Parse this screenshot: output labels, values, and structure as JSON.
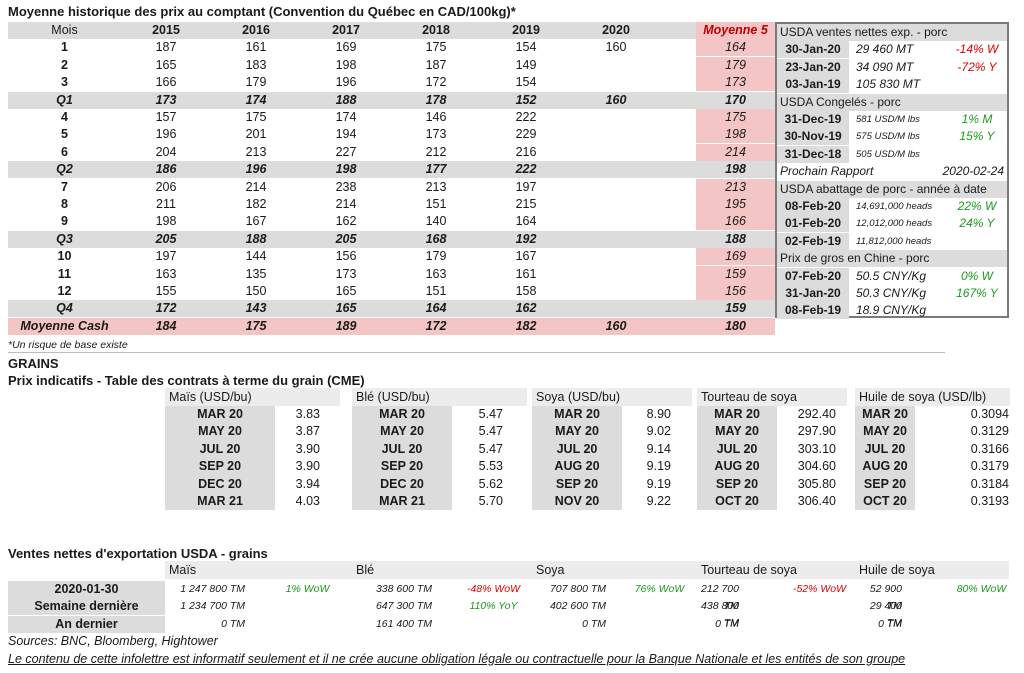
{
  "main": {
    "title": "Moyenne historique des prix au comptant (Convention du Québec en CAD/100kg)*",
    "headers": [
      "Mois",
      "2015",
      "2016",
      "2017",
      "2018",
      "2019",
      "2020",
      "Moyenne 5"
    ],
    "rows": [
      {
        "label": "1",
        "values": [
          "187",
          "161",
          "169",
          "175",
          "154",
          "160"
        ],
        "avg": "164",
        "type": "month"
      },
      {
        "label": "2",
        "values": [
          "165",
          "183",
          "198",
          "187",
          "149",
          ""
        ],
        "avg": "179",
        "type": "month"
      },
      {
        "label": "3",
        "values": [
          "166",
          "179",
          "196",
          "172",
          "154",
          ""
        ],
        "avg": "173",
        "type": "month"
      },
      {
        "label": "Q1",
        "values": [
          "173",
          "174",
          "188",
          "178",
          "152",
          "160"
        ],
        "avg": "170",
        "type": "quarter"
      },
      {
        "label": "4",
        "values": [
          "157",
          "175",
          "174",
          "146",
          "222",
          ""
        ],
        "avg": "175",
        "type": "month"
      },
      {
        "label": "5",
        "values": [
          "196",
          "201",
          "194",
          "173",
          "229",
          ""
        ],
        "avg": "198",
        "type": "month"
      },
      {
        "label": "6",
        "values": [
          "204",
          "213",
          "227",
          "212",
          "216",
          ""
        ],
        "avg": "214",
        "type": "month"
      },
      {
        "label": "Q2",
        "values": [
          "186",
          "196",
          "198",
          "177",
          "222",
          ""
        ],
        "avg": "198",
        "type": "quarter"
      },
      {
        "label": "7",
        "values": [
          "206",
          "214",
          "238",
          "213",
          "197",
          ""
        ],
        "avg": "213",
        "type": "month"
      },
      {
        "label": "8",
        "values": [
          "211",
          "182",
          "214",
          "151",
          "215",
          ""
        ],
        "avg": "195",
        "type": "month"
      },
      {
        "label": "9",
        "values": [
          "198",
          "167",
          "162",
          "140",
          "164",
          ""
        ],
        "avg": "166",
        "type": "month"
      },
      {
        "label": "Q3",
        "values": [
          "205",
          "188",
          "205",
          "168",
          "192",
          ""
        ],
        "avg": "188",
        "type": "quarter"
      },
      {
        "label": "10",
        "values": [
          "197",
          "144",
          "156",
          "179",
          "167",
          ""
        ],
        "avg": "169",
        "type": "month"
      },
      {
        "label": "11",
        "values": [
          "163",
          "135",
          "173",
          "163",
          "161",
          ""
        ],
        "avg": "159",
        "type": "month"
      },
      {
        "label": "12",
        "values": [
          "155",
          "150",
          "165",
          "151",
          "158",
          ""
        ],
        "avg": "156",
        "type": "month"
      },
      {
        "label": "Q4",
        "values": [
          "172",
          "143",
          "165",
          "164",
          "162",
          ""
        ],
        "avg": "159",
        "type": "quarter"
      },
      {
        "label": "Moyenne Cash",
        "values": [
          "184",
          "175",
          "189",
          "172",
          "182",
          "160"
        ],
        "avg": "180",
        "type": "total"
      }
    ],
    "footnote": "*Un risque de base existe"
  },
  "panel": {
    "sections": [
      {
        "title": "USDA ventes nettes exp. - porc",
        "rows": [
          {
            "date": "30-Jan-20",
            "value": "29 460  MT",
            "change": "-14% W",
            "color": "red",
            "small": false
          },
          {
            "date": "23-Jan-20",
            "value": "34 090  MT",
            "change": "-72% Y",
            "color": "red",
            "small": false
          },
          {
            "date": "03-Jan-19",
            "value": "105 830  MT",
            "change": "",
            "color": "",
            "small": false
          }
        ]
      },
      {
        "title": "USDA Congelés - porc",
        "rows": [
          {
            "date": "31-Dec-19",
            "value": "581 USD/M lbs",
            "change": "1% M",
            "color": "green",
            "small": true
          },
          {
            "date": "30-Nov-19",
            "value": "575 USD/M lbs",
            "change": "15% Y",
            "color": "green",
            "small": true
          },
          {
            "date": "31-Dec-18",
            "value": "505 USD/M lbs",
            "change": "",
            "color": "",
            "small": true
          }
        ]
      },
      {
        "title": "",
        "rows": []
      },
      {
        "title": "USDA abattage de porc - année à date",
        "rows": [
          {
            "date": "08-Feb-20",
            "value": "14,691,000 heads",
            "change": "22% W",
            "color": "green",
            "small": true
          },
          {
            "date": "01-Feb-20",
            "value": "12,012,000 heads",
            "change": "24% Y",
            "color": "green",
            "small": true
          },
          {
            "date": "02-Feb-19",
            "value": "11,812,000 heads",
            "change": "",
            "color": "",
            "small": true
          }
        ]
      },
      {
        "title": "Prix de gros en Chine - porc",
        "rows": [
          {
            "date": "07-Feb-20",
            "value": "50.5 CNY/Kg",
            "change": "0% W",
            "color": "green",
            "small": false
          },
          {
            "date": "31-Jan-20",
            "value": "50.3 CNY/Kg",
            "change": "167% Y",
            "color": "green",
            "small": false
          },
          {
            "date": "08-Feb-19",
            "value": "18.9 CNY/Kg",
            "change": "",
            "color": "",
            "small": false
          }
        ]
      }
    ],
    "next_report_label": "Prochain Rapport",
    "next_report_date": "2020-02-24"
  },
  "grains": {
    "section_title": "GRAINS",
    "subtitle": "Prix indicatifs - Table des contrats à terme du grain (CME)",
    "columns": [
      {
        "name": "Maïs (USD/bu)",
        "months": [
          "MAR 20",
          "MAY 20",
          "JUL 20",
          "SEP 20",
          "DEC 20",
          "MAR 21"
        ],
        "prices": [
          "3.83",
          "3.87",
          "3.90",
          "3.90",
          "3.94",
          "4.03"
        ]
      },
      {
        "name": "Blé (USD/bu)",
        "months": [
          "MAR 20",
          "MAY 20",
          "JUL 20",
          "SEP 20",
          "DEC 20",
          "MAR 21"
        ],
        "prices": [
          "5.47",
          "5.47",
          "5.47",
          "5.53",
          "5.62",
          "5.70"
        ]
      },
      {
        "name": "Soya (USD/bu)",
        "months": [
          "MAR 20",
          "MAY 20",
          "JUL 20",
          "AUG 20",
          "SEP 20",
          "NOV 20"
        ],
        "prices": [
          "8.90",
          "9.02",
          "9.14",
          "9.19",
          "9.19",
          "9.22"
        ]
      },
      {
        "name": "Tourteau de soya (USD/ST",
        "months": [
          "MAR 20",
          "MAY 20",
          "JUL 20",
          "AUG 20",
          "SEP 20",
          "OCT 20"
        ],
        "prices": [
          "292.40",
          "297.90",
          "303.10",
          "304.60",
          "305.80",
          "306.40"
        ]
      },
      {
        "name": "Huile de soya (USD/lb)",
        "months": [
          "MAR 20",
          "MAY 20",
          "JUL 20",
          "AUG 20",
          "SEP 20",
          "OCT 20"
        ],
        "prices": [
          "0.3094",
          "0.3129",
          "0.3166",
          "0.3179",
          "0.3184",
          "0.3193"
        ]
      }
    ]
  },
  "exports": {
    "title": "Ventes nettes d'exportation USDA - grains",
    "columns": [
      "Maïs",
      "Blé",
      "Soya",
      "Tourteau de soya",
      "Huile de soya"
    ],
    "rows": [
      {
        "label": "2020-01-30",
        "cells": [
          {
            "value": "1 247 800 TM",
            "change": "1% WoW",
            "color": "green"
          },
          {
            "value": "338 600 TM",
            "change": "-48% WoW",
            "color": "red"
          },
          {
            "value": "707 800 TM",
            "change": "76% WoW",
            "color": "green"
          },
          {
            "value": "212 700 TM",
            "change": "-52% WoW",
            "color": "red"
          },
          {
            "value": "52 900 TM",
            "change": "80% WoW",
            "color": "green"
          }
        ]
      },
      {
        "label": "Semaine dernière",
        "cells": [
          {
            "value": "1 234 700 TM",
            "change": "",
            "color": ""
          },
          {
            "value": "647 300 TM",
            "change": "110% YoY",
            "color": "green"
          },
          {
            "value": "402 600 TM",
            "change": "",
            "color": ""
          },
          {
            "value": "438 800 TM",
            "change": "",
            "color": ""
          },
          {
            "value": "29 400 TM",
            "change": "",
            "color": ""
          }
        ]
      },
      {
        "label": "An dernier",
        "cells": [
          {
            "value": "0 TM",
            "change": "",
            "color": ""
          },
          {
            "value": "161 400 TM",
            "change": "",
            "color": ""
          },
          {
            "value": "0 TM",
            "change": "",
            "color": ""
          },
          {
            "value": "0 TM",
            "change": "",
            "color": ""
          },
          {
            "value": "0 TM",
            "change": "",
            "color": ""
          }
        ]
      }
    ]
  },
  "footer": {
    "sources": "Sources: BNC, Bloomberg, Hightower",
    "disclaimer": "Le contenu de cette infolettre est informatif seulement et il ne crée aucune obligation légale ou contractuelle pour la Banque Nationale et les entités de son groupe"
  },
  "colors": {
    "shade": "#dcdcdc",
    "pink": "#f3c5c5",
    "red": "#e00000",
    "green": "#1a9c1a"
  }
}
